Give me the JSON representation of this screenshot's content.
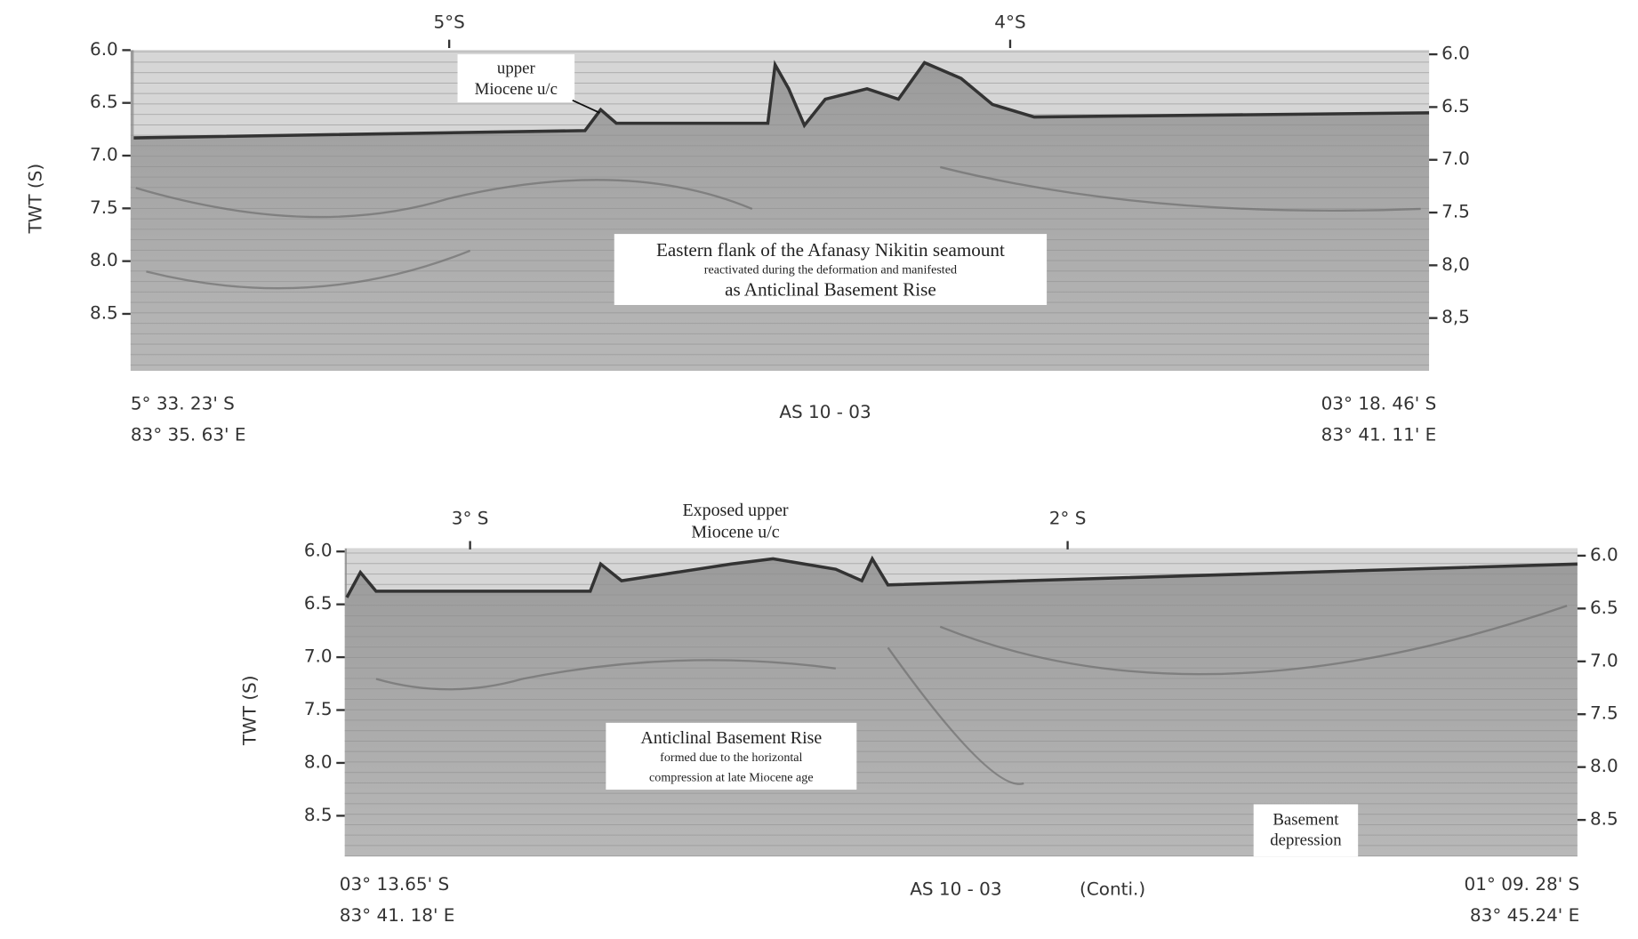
{
  "panels": [
    {
      "top_ticks": [
        "5°S",
        "4°S"
      ],
      "axis_label": "TWT (S)",
      "left_ticks": [
        "6.0",
        "6.5",
        "7.0",
        "7.5",
        "8.0",
        "8.5"
      ],
      "right_ticks": [
        "6.0",
        "6.5",
        "7.0",
        "7.5",
        "8,0",
        "8,5"
      ],
      "start": [
        "5° 33. 23' S",
        "83° 35. 63' E"
      ],
      "end": [
        "03° 18. 46' S",
        "83° 41. 11' E"
      ],
      "line_name": "AS 10 - 03",
      "annotations": [
        {
          "lines": [
            "upper",
            "Miocene u/c"
          ]
        },
        {
          "lines": [
            "Eastern flank of the Afanasy Nikitin seamount",
            "reactivated during the deformation and manifested",
            "as Anticlinal Basement Rise"
          ]
        }
      ]
    },
    {
      "top_ticks": [
        "3° S",
        "2° S"
      ],
      "axis_label": "TWT (S)",
      "left_ticks": [
        "6.0",
        "6.5",
        "7.0",
        "7.5",
        "8.0",
        "8.5"
      ],
      "right_ticks": [
        "6.0",
        "6.5",
        "7.0",
        "7.5",
        "8.0",
        "8.5"
      ],
      "start": [
        "03° 13.65' S",
        "83° 41. 18' E"
      ],
      "end": [
        "01° 09. 28' S",
        "83° 45.24' E"
      ],
      "line_name": "AS 10 - 03",
      "line_note": "(Conti.)",
      "annotations": [
        {
          "lines": [
            "Exposed upper",
            "Miocene u/c"
          ]
        },
        {
          "lines": [
            "Anticlinal Basement Rise",
            "formed due to the horizontal",
            "compression at late Miocene age"
          ]
        },
        {
          "lines": [
            "Basement",
            "depression"
          ]
        }
      ]
    }
  ]
}
